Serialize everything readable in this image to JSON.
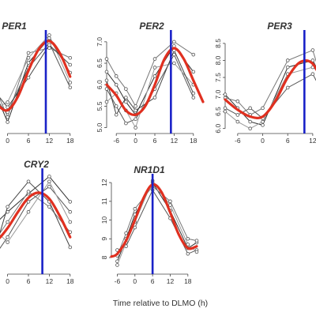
{
  "xlabel": "Time relative to DLMO (h)",
  "chart_data": [
    {
      "type": "line",
      "title": "PER1",
      "x_ticks": [
        0,
        6,
        12,
        18
      ],
      "y_ticks": [],
      "xlim": [
        -9,
        21
      ],
      "ylim": [
        0,
        10
      ],
      "marker_x": 11,
      "fit": {
        "name": "cosinor fit",
        "color": "#e03020",
        "x": [
          -9,
          -6,
          -3,
          0,
          3,
          6,
          9,
          12,
          15,
          18
        ],
        "y": [
          6.2,
          4.3,
          2.8,
          2.2,
          3.6,
          6.2,
          8.4,
          9.2,
          8.0,
          5.6
        ]
      },
      "series": [
        {
          "x": [
            -9,
            -3,
            0,
            6,
            12,
            18
          ],
          "y": [
            6.5,
            3.5,
            1.0,
            7.0,
            9.5,
            6.0
          ]
        },
        {
          "x": [
            -9,
            -3,
            0,
            6,
            12,
            18
          ],
          "y": [
            5.5,
            3.0,
            2.0,
            6.5,
            9.0,
            4.5
          ]
        },
        {
          "x": [
            -9,
            -3,
            0,
            6,
            12,
            18
          ],
          "y": [
            7.0,
            4.0,
            1.5,
            8.0,
            8.5,
            7.5
          ]
        },
        {
          "x": [
            -9,
            -3,
            0,
            6,
            12,
            18
          ],
          "y": [
            5.0,
            2.5,
            3.0,
            7.5,
            9.8,
            5.0
          ]
        },
        {
          "x": [
            -9,
            -3,
            0,
            6,
            12,
            18
          ],
          "y": [
            6.0,
            3.8,
            2.5,
            5.5,
            8.8,
            6.8
          ]
        }
      ]
    },
    {
      "type": "line",
      "title": "PER2",
      "x_ticks": [
        -6,
        0,
        6,
        12,
        18
      ],
      "y_ticks": [
        5.0,
        5.5,
        6.0,
        6.5,
        7.0
      ],
      "xlim": [
        -9,
        21
      ],
      "ylim": [
        4.9,
        7.2
      ],
      "marker_x": 11,
      "fit": {
        "name": "cosinor fit",
        "color": "#e03020",
        "x": [
          -9,
          -6,
          -3,
          0,
          3,
          6,
          9,
          12,
          15,
          18,
          21
        ],
        "y": [
          6.0,
          5.75,
          5.4,
          5.3,
          5.5,
          6.0,
          6.6,
          6.85,
          6.6,
          6.1,
          5.6
        ]
      },
      "series": [
        {
          "x": [
            -9,
            -6,
            -3,
            0,
            6,
            12,
            18
          ],
          "y": [
            6.3,
            6.0,
            5.6,
            5.3,
            6.2,
            6.9,
            6.3
          ]
        },
        {
          "x": [
            -9,
            -6,
            -3,
            0,
            6,
            12,
            18
          ],
          "y": [
            5.9,
            5.5,
            5.1,
            5.2,
            5.9,
            6.7,
            5.7
          ]
        },
        {
          "x": [
            -9,
            -6,
            -3,
            0,
            6,
            12,
            18
          ],
          "y": [
            6.6,
            6.2,
            5.9,
            5.5,
            6.6,
            7.0,
            6.7
          ]
        },
        {
          "x": [
            -9,
            -6,
            -3,
            0,
            6,
            12,
            18
          ],
          "y": [
            5.6,
            5.8,
            5.4,
            5.0,
            6.4,
            6.5,
            6.0
          ]
        },
        {
          "x": [
            -9,
            -6,
            -3,
            0,
            6,
            12,
            18
          ],
          "y": [
            6.1,
            5.3,
            5.7,
            5.4,
            5.7,
            6.8,
            5.8
          ]
        }
      ]
    },
    {
      "type": "line",
      "title": "PER3",
      "x_ticks": [
        -6,
        0,
        6,
        12
      ],
      "y_ticks": [
        6.0,
        6.5,
        7.0,
        7.5,
        8.0,
        8.5
      ],
      "xlim": [
        -9,
        16
      ],
      "ylim": [
        5.9,
        8.8
      ],
      "marker_x": 10,
      "fit": {
        "name": "cosinor fit",
        "color": "#e03020",
        "x": [
          -9,
          -6,
          -3,
          0,
          3,
          6,
          9,
          12,
          15
        ],
        "y": [
          6.85,
          6.55,
          6.35,
          6.35,
          6.8,
          7.5,
          7.95,
          7.9,
          7.2
        ]
      },
      "series": [
        {
          "x": [
            -9,
            -6,
            -3,
            0,
            6,
            12,
            15
          ],
          "y": [
            7.0,
            6.6,
            6.2,
            6.1,
            7.8,
            8.0,
            7.3
          ]
        },
        {
          "x": [
            -9,
            -6,
            -3,
            0,
            6,
            12,
            15
          ],
          "y": [
            6.6,
            6.4,
            6.6,
            6.3,
            7.2,
            7.6,
            6.9
          ]
        },
        {
          "x": [
            -9,
            -6,
            -3,
            0,
            6,
            12,
            15
          ],
          "y": [
            6.9,
            6.8,
            6.4,
            6.6,
            8.0,
            8.3,
            7.1
          ]
        },
        {
          "x": [
            -9,
            -6,
            -3,
            0,
            6,
            12,
            15
          ],
          "y": [
            6.5,
            6.2,
            6.0,
            6.2,
            7.6,
            7.8,
            7.5
          ]
        }
      ]
    },
    {
      "type": "line",
      "title": "CRY2",
      "x_ticks": [
        0,
        6,
        12,
        18
      ],
      "y_ticks": [],
      "xlim": [
        -9,
        21
      ],
      "ylim": [
        0,
        10
      ],
      "marker_x": 10,
      "fit": {
        "name": "cosinor fit",
        "color": "#e03020",
        "x": [
          -9,
          -6,
          -3,
          0,
          3,
          6,
          9,
          12,
          15,
          18
        ],
        "y": [
          3.2,
          2.8,
          3.2,
          4.4,
          6.0,
          7.4,
          7.9,
          7.3,
          5.6,
          3.5
        ]
      },
      "series": [
        {
          "x": [
            -9,
            -3,
            0,
            6,
            12,
            18
          ],
          "y": [
            4.5,
            5.0,
            6.0,
            7.8,
            9.5,
            7.0
          ]
        },
        {
          "x": [
            -9,
            -3,
            0,
            6,
            12,
            18
          ],
          "y": [
            3.0,
            2.0,
            3.5,
            7.0,
            8.5,
            6.0
          ]
        },
        {
          "x": [
            -9,
            -3,
            0,
            6,
            12,
            18
          ],
          "y": [
            2.0,
            3.5,
            5.0,
            8.0,
            6.5,
            4.0
          ]
        },
        {
          "x": [
            -9,
            -3,
            0,
            6,
            12,
            18
          ],
          "y": [
            1.5,
            4.0,
            3.0,
            6.0,
            9.0,
            5.0
          ]
        },
        {
          "x": [
            -9,
            -3,
            0,
            6,
            12,
            18
          ],
          "y": [
            5.5,
            3.0,
            6.5,
            9.0,
            7.0,
            2.5
          ]
        }
      ]
    },
    {
      "type": "line",
      "title": "NR1D1",
      "x_ticks": [
        -6,
        0,
        6,
        12,
        18
      ],
      "y_ticks": [
        8,
        9,
        10,
        11,
        12
      ],
      "xlim": [
        -8,
        21
      ],
      "ylim": [
        7.2,
        12.3
      ],
      "marker_x": 6,
      "fit": {
        "name": "cosinor fit",
        "color": "#e03020",
        "x": [
          -8,
          -6,
          -3,
          0,
          3,
          6,
          9,
          12,
          15,
          18,
          21
        ],
        "y": [
          8.05,
          8.2,
          8.9,
          10.0,
          11.2,
          11.9,
          11.5,
          10.4,
          9.2,
          8.5,
          8.6
        ]
      },
      "series": [
        {
          "x": [
            -6,
            -3,
            0,
            6,
            12,
            18,
            21
          ],
          "y": [
            7.8,
            9.0,
            10.3,
            12.0,
            10.5,
            8.5,
            8.8
          ]
        },
        {
          "x": [
            -6,
            -3,
            0,
            6,
            12,
            18,
            21
          ],
          "y": [
            8.4,
            8.6,
            9.6,
            11.6,
            10.1,
            8.2,
            8.4
          ]
        },
        {
          "x": [
            -6,
            -3,
            0,
            6,
            12,
            18,
            21
          ],
          "y": [
            8.1,
            9.3,
            10.6,
            11.8,
            11.0,
            9.0,
            8.9
          ]
        },
        {
          "x": [
            -6,
            -3,
            0,
            6,
            12,
            18,
            21
          ],
          "y": [
            7.6,
            8.8,
            9.9,
            12.1,
            10.8,
            8.7,
            8.3
          ]
        }
      ]
    }
  ]
}
